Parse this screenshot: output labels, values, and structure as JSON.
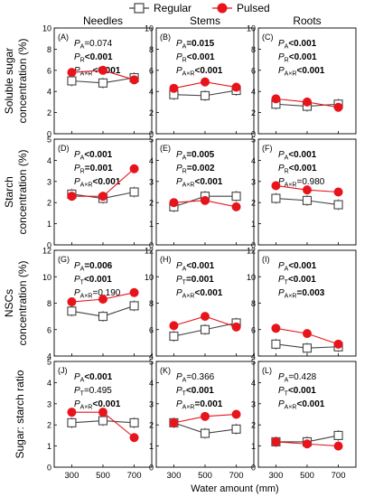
{
  "legend": {
    "position": "top-center",
    "entries": [
      {
        "label": "Regular",
        "marker": "open-square",
        "color": "#444444"
      },
      {
        "label": "Pulsed",
        "marker": "filled-circle",
        "color": "#e8141c"
      }
    ]
  },
  "column_titles": [
    "Needles",
    "Stems",
    "Roots"
  ],
  "row_ylabels": [
    [
      "Soluble sugar",
      "concentration (%)"
    ],
    [
      "Starch",
      "concentration (%)"
    ],
    [
      "NSCs",
      "concentration (%)"
    ],
    [
      "Sugar: starch ratio"
    ]
  ],
  "xlabel": "Water amount (mm)",
  "colors": {
    "regular": "#444444",
    "pulsed": "#e8141c"
  },
  "chart_data": [
    {
      "type": "line",
      "panel": "(A)",
      "row": 0,
      "col": 0,
      "categories": [
        "300",
        "500",
        "700"
      ],
      "ylim": [
        0,
        10
      ],
      "yticks": [
        "0",
        "2",
        "4",
        "6",
        "8",
        "10"
      ],
      "series": [
        {
          "name": "Regular",
          "values": [
            5.0,
            4.8,
            5.3
          ]
        },
        {
          "name": "Pulsed",
          "values": [
            5.8,
            6.0,
            5.1
          ]
        }
      ],
      "stats": [
        {
          "sym": "P",
          "sub": "A",
          "val": "=0.074",
          "bold": false
        },
        {
          "sym": "P",
          "sub": "R",
          "val": "<0.001",
          "bold": true
        },
        {
          "sym": "P",
          "sub": "A×R",
          "val": "<0.001",
          "bold": true
        }
      ]
    },
    {
      "type": "line",
      "panel": "(B)",
      "row": 0,
      "col": 1,
      "categories": [
        "300",
        "500",
        "700"
      ],
      "ylim": [
        0,
        10
      ],
      "yticks": [
        "0",
        "2",
        "4",
        "6",
        "8",
        "10"
      ],
      "series": [
        {
          "name": "Regular",
          "values": [
            3.7,
            3.6,
            4.1
          ]
        },
        {
          "name": "Pulsed",
          "values": [
            4.3,
            4.9,
            4.4
          ]
        }
      ],
      "stats": [
        {
          "sym": "P",
          "sub": "A",
          "val": "=0.015",
          "bold": true
        },
        {
          "sym": "P",
          "sub": "R",
          "val": "<0.001",
          "bold": true
        },
        {
          "sym": "P",
          "sub": "A×R",
          "val": "<0.001",
          "bold": true
        }
      ]
    },
    {
      "type": "line",
      "panel": "(C)",
      "row": 0,
      "col": 2,
      "categories": [
        "300",
        "500",
        "700"
      ],
      "ylim": [
        0,
        10
      ],
      "yticks": [
        "0",
        "2",
        "4",
        "6",
        "8",
        "10"
      ],
      "series": [
        {
          "name": "Regular",
          "values": [
            2.8,
            2.6,
            2.8
          ]
        },
        {
          "name": "Pulsed",
          "values": [
            3.3,
            3.0,
            2.5
          ]
        }
      ],
      "stats": [
        {
          "sym": "P",
          "sub": "A",
          "val": "<0.001",
          "bold": true
        },
        {
          "sym": "P",
          "sub": "R",
          "val": "<0.001",
          "bold": true
        },
        {
          "sym": "P",
          "sub": "A×R",
          "val": "<0.001",
          "bold": true
        }
      ]
    },
    {
      "type": "line",
      "panel": "(D)",
      "row": 1,
      "col": 0,
      "categories": [
        "300",
        "500",
        "700"
      ],
      "ylim": [
        0,
        5
      ],
      "yticks": [
        "0",
        "1",
        "2",
        "3",
        "4",
        "5"
      ],
      "series": [
        {
          "name": "Regular",
          "values": [
            2.4,
            2.2,
            2.5
          ]
        },
        {
          "name": "Pulsed",
          "values": [
            2.3,
            2.3,
            3.6
          ]
        }
      ],
      "stats": [
        {
          "sym": "P",
          "sub": "A",
          "val": "<0.001",
          "bold": true
        },
        {
          "sym": "P",
          "sub": "R",
          "val": "=0.001",
          "bold": true
        },
        {
          "sym": "P",
          "sub": "A×R",
          "val": "<0.001",
          "bold": true
        }
      ]
    },
    {
      "type": "line",
      "panel": "(E)",
      "row": 1,
      "col": 1,
      "categories": [
        "300",
        "500",
        "700"
      ],
      "ylim": [
        0,
        5
      ],
      "yticks": [
        "0",
        "1",
        "2",
        "3",
        "4",
        "5"
      ],
      "series": [
        {
          "name": "Regular",
          "values": [
            1.8,
            2.3,
            2.3
          ]
        },
        {
          "name": "Pulsed",
          "values": [
            2.0,
            2.1,
            1.8
          ]
        }
      ],
      "stats": [
        {
          "sym": "P",
          "sub": "A",
          "val": "=0.005",
          "bold": true
        },
        {
          "sym": "P",
          "sub": "R",
          "val": "=0.002",
          "bold": true
        },
        {
          "sym": "P",
          "sub": "A×R",
          "val": "<0.001",
          "bold": true
        }
      ]
    },
    {
      "type": "line",
      "panel": "(F)",
      "row": 1,
      "col": 2,
      "categories": [
        "300",
        "500",
        "700"
      ],
      "ylim": [
        0,
        5
      ],
      "yticks": [
        "0",
        "1",
        "2",
        "3",
        "4",
        "5"
      ],
      "series": [
        {
          "name": "Regular",
          "values": [
            2.2,
            2.1,
            1.9
          ]
        },
        {
          "name": "Pulsed",
          "values": [
            2.8,
            2.6,
            2.5
          ]
        }
      ],
      "stats": [
        {
          "sym": "P",
          "sub": "A",
          "val": "<0.001",
          "bold": true
        },
        {
          "sym": "P",
          "sub": "R",
          "val": "<0.001",
          "bold": true
        },
        {
          "sym": "P",
          "sub": "A×R",
          "val": "=0.980",
          "bold": false
        }
      ]
    },
    {
      "type": "line",
      "panel": "(G)",
      "row": 2,
      "col": 0,
      "categories": [
        "300",
        "500",
        "700"
      ],
      "ylim": [
        4,
        12
      ],
      "yticks": [
        "4",
        "6",
        "8",
        "10",
        "12"
      ],
      "series": [
        {
          "name": "Regular",
          "values": [
            7.4,
            7.0,
            7.8
          ]
        },
        {
          "name": "Pulsed",
          "values": [
            8.1,
            8.3,
            8.8
          ]
        }
      ],
      "stats": [
        {
          "sym": "P",
          "sub": "A",
          "val": "=0.006",
          "bold": true
        },
        {
          "sym": "P",
          "sub": "T",
          "val": "<0.001",
          "bold": true
        },
        {
          "sym": "P",
          "sub": "A×R",
          "val": "=0.190",
          "bold": false
        }
      ]
    },
    {
      "type": "line",
      "panel": "(H)",
      "row": 2,
      "col": 1,
      "categories": [
        "300",
        "500",
        "700"
      ],
      "ylim": [
        4,
        12
      ],
      "yticks": [
        "4",
        "6",
        "8",
        "10",
        "12"
      ],
      "series": [
        {
          "name": "Regular",
          "values": [
            5.5,
            6.0,
            6.5
          ]
        },
        {
          "name": "Pulsed",
          "values": [
            6.3,
            7.0,
            6.2
          ]
        }
      ],
      "stats": [
        {
          "sym": "P",
          "sub": "A",
          "val": "<0.001",
          "bold": true
        },
        {
          "sym": "P",
          "sub": "T",
          "val": "=0.001",
          "bold": true
        },
        {
          "sym": "P",
          "sub": "A×R",
          "val": "<0.001",
          "bold": true
        }
      ]
    },
    {
      "type": "line",
      "panel": "(I)",
      "row": 2,
      "col": 2,
      "categories": [
        "300",
        "500",
        "700"
      ],
      "ylim": [
        4,
        12
      ],
      "yticks": [
        "4",
        "6",
        "8",
        "10",
        "12"
      ],
      "series": [
        {
          "name": "Regular",
          "values": [
            4.9,
            4.6,
            4.7
          ]
        },
        {
          "name": "Pulsed",
          "values": [
            6.1,
            5.7,
            4.9
          ]
        }
      ],
      "stats": [
        {
          "sym": "P",
          "sub": "A",
          "val": "<0.001",
          "bold": true
        },
        {
          "sym": "P",
          "sub": "T",
          "val": "<0.001",
          "bold": true
        },
        {
          "sym": "P",
          "sub": "A×R",
          "val": "=0.003",
          "bold": true
        }
      ]
    },
    {
      "type": "line",
      "panel": "(J)",
      "row": 3,
      "col": 0,
      "categories": [
        "300",
        "500",
        "700"
      ],
      "ylim": [
        0,
        5
      ],
      "yticks": [
        "0",
        "1",
        "2",
        "3",
        "4",
        "5"
      ],
      "series": [
        {
          "name": "Regular",
          "values": [
            2.1,
            2.2,
            2.1
          ]
        },
        {
          "name": "Pulsed",
          "values": [
            2.6,
            2.6,
            1.4
          ]
        }
      ],
      "stats": [
        {
          "sym": "P",
          "sub": "A",
          "val": "<0.001",
          "bold": true
        },
        {
          "sym": "P",
          "sub": "T",
          "val": "=0.495",
          "bold": false
        },
        {
          "sym": "P",
          "sub": "A×R",
          "val": "<0.001",
          "bold": true
        }
      ]
    },
    {
      "type": "line",
      "panel": "(K)",
      "row": 3,
      "col": 1,
      "categories": [
        "300",
        "500",
        "700"
      ],
      "ylim": [
        0,
        5
      ],
      "yticks": [
        "0",
        "1",
        "2",
        "3",
        "4",
        "5"
      ],
      "series": [
        {
          "name": "Regular",
          "values": [
            2.1,
            1.6,
            1.8
          ]
        },
        {
          "name": "Pulsed",
          "values": [
            2.1,
            2.4,
            2.5
          ]
        }
      ],
      "stats": [
        {
          "sym": "P",
          "sub": "A",
          "val": "=0.366",
          "bold": false
        },
        {
          "sym": "P",
          "sub": "T",
          "val": "<0.001",
          "bold": true
        },
        {
          "sym": "P",
          "sub": "A×R",
          "val": "=0.001",
          "bold": true
        }
      ]
    },
    {
      "type": "line",
      "panel": "(L)",
      "row": 3,
      "col": 2,
      "categories": [
        "300",
        "500",
        "700"
      ],
      "ylim": [
        0,
        5
      ],
      "yticks": [
        "0",
        "1",
        "2",
        "3",
        "4",
        "5"
      ],
      "series": [
        {
          "name": "Regular",
          "values": [
            1.2,
            1.2,
            1.5
          ]
        },
        {
          "name": "Pulsed",
          "values": [
            1.2,
            1.1,
            1.0
          ]
        }
      ],
      "stats": [
        {
          "sym": "P",
          "sub": "A",
          "val": "=0.428",
          "bold": false
        },
        {
          "sym": "P",
          "sub": "T",
          "val": "<0.001",
          "bold": true
        },
        {
          "sym": "P",
          "sub": "A×R",
          "val": "<0.001",
          "bold": true
        }
      ]
    }
  ]
}
